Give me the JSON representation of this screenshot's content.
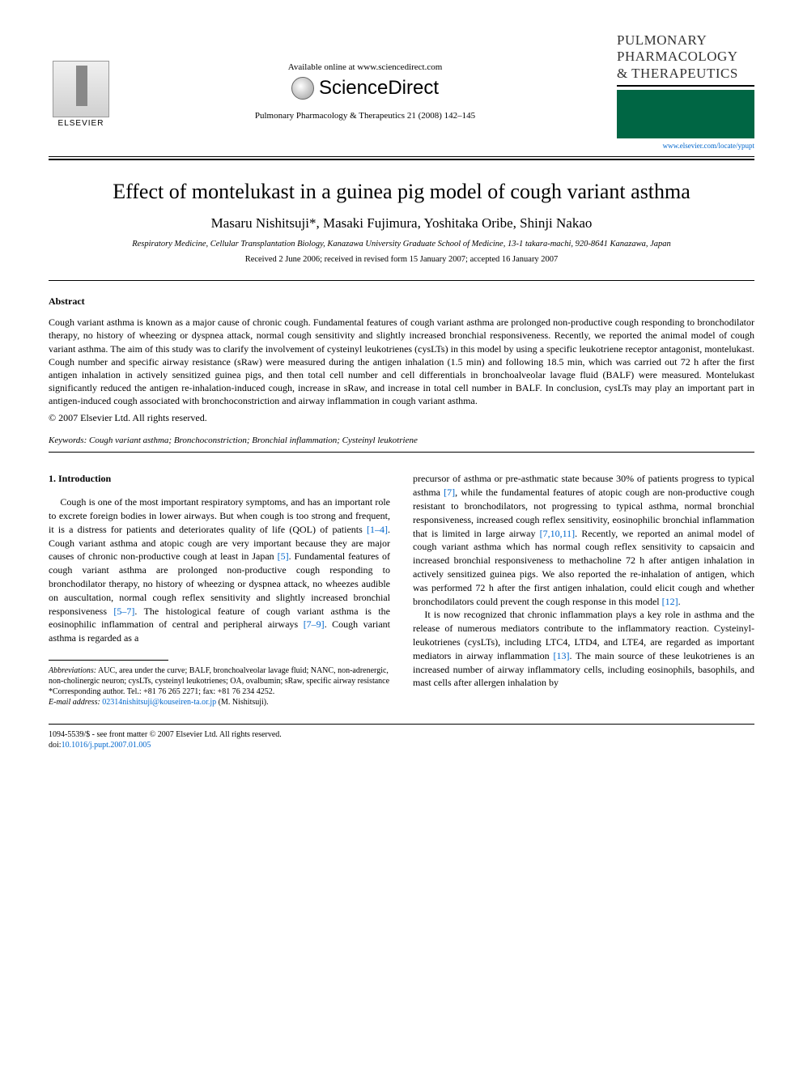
{
  "header": {
    "available_online": "Available online at www.sciencedirect.com",
    "sciencedirect": "ScienceDirect",
    "journal_ref": "Pulmonary Pharmacology & Therapeutics 21 (2008) 142–145",
    "elsevier_name": "ELSEVIER",
    "journal_logo_line1": "PULMONARY",
    "journal_logo_line2": "PHARMACOLOGY",
    "journal_logo_line3": "& THERAPEUTICS",
    "journal_url": "www.elsevier.com/locate/ypupt"
  },
  "article": {
    "title": "Effect of montelukast in a guinea pig model of cough variant asthma",
    "authors": "Masaru Nishitsuji*, Masaki Fujimura, Yoshitaka Oribe, Shinji Nakao",
    "affiliation": "Respiratory Medicine, Cellular Transplantation Biology, Kanazawa University Graduate School of Medicine, 13-1 takara-machi, 920-8641 Kanazawa, Japan",
    "dates": "Received 2 June 2006; received in revised form 15 January 2007; accepted 16 January 2007"
  },
  "abstract": {
    "heading": "Abstract",
    "body": "Cough variant asthma is known as a major cause of chronic cough. Fundamental features of cough variant asthma are prolonged non-productive cough responding to bronchodilator therapy, no history of wheezing or dyspnea attack, normal cough sensitivity and slightly increased bronchial responsiveness. Recently, we reported the animal model of cough variant asthma. The aim of this study was to clarify the involvement of cysteinyl leukotrienes (cysLTs) in this model by using a specific leukotriene receptor antagonist, montelukast. Cough number and specific airway resistance (sRaw) were measured during the antigen inhalation (1.5 min) and following 18.5 min, which was carried out 72 h after the first antigen inhalation in actively sensitized guinea pigs, and then total cell number and cell differentials in bronchoalveolar lavage fluid (BALF) were measured. Montelukast significantly reduced the antigen re-inhalation-induced cough, increase in sRaw, and increase in total cell number in BALF. In conclusion, cysLTs may play an important part in antigen-induced cough associated with bronchoconstriction and airway inflammation in cough variant asthma.",
    "copyright": "© 2007 Elsevier Ltd. All rights reserved.",
    "keywords_label": "Keywords:",
    "keywords": " Cough variant asthma; Bronchoconstriction; Bronchial inflammation; Cysteinyl leukotriene"
  },
  "body": {
    "section1_head": "1. Introduction",
    "col1_p1a": "Cough is one of the most important respiratory symptoms, and has an important role to excrete foreign bodies in lower airways. But when cough is too strong and frequent, it is a distress for patients and deteriorates quality of life (QOL) of patients ",
    "col1_ref1": "[1–4]",
    "col1_p1b": ". Cough variant asthma and atopic cough are very important because they are major causes of chronic non-productive cough at least in Japan ",
    "col1_ref2": "[5]",
    "col1_p1c": ". Fundamental features of cough variant asthma are prolonged non-productive cough responding to bronchodilator therapy, no history of wheezing or dyspnea attack, no wheezes audible on auscultation, normal cough reflex sensitivity and slightly increased bronchial responsiveness ",
    "col1_ref3": "[5–7]",
    "col1_p1d": ". The histological feature of cough variant asthma is the eosinophilic inflammation of central and peripheral airways ",
    "col1_ref4": "[7–9]",
    "col1_p1e": ". Cough variant asthma is regarded as a",
    "col2_p1a": "precursor of asthma or pre-asthmatic state because 30% of patients progress to typical asthma ",
    "col2_ref1": "[7]",
    "col2_p1b": ", while the fundamental features of atopic cough are non-productive cough resistant to bronchodilators, not progressing to typical asthma, normal bronchial responsiveness, increased cough reflex sensitivity, eosinophilic bronchial inflammation that is limited in large airway ",
    "col2_ref2": "[7,10,11]",
    "col2_p1c": ". Recently, we reported an animal model of cough variant asthma which has normal cough reflex sensitivity to capsaicin and increased bronchial responsiveness to methacholine 72 h after antigen inhalation in actively sensitized guinea pigs. We also reported the re-inhalation of antigen, which was performed 72 h after the first antigen inhalation, could elicit cough and whether bronchodilators could prevent the cough response in this model ",
    "col2_ref3": "[12]",
    "col2_p1d": ".",
    "col2_p2a": "It is now recognized that chronic inflammation plays a key role in asthma and the release of numerous mediators contribute to the inflammatory reaction. Cysteinyl-leukotrienes (cysLTs), including LTC4, LTD4, and LTE4, are regarded as important mediators in airway inflammation ",
    "col2_ref4": "[13]",
    "col2_p2b": ". The main source of these leukotrienes is an increased number of airway inflammatory cells, including eosinophils, basophils, and mast cells after allergen inhalation by"
  },
  "footnotes": {
    "abbrev_label": "Abbreviations:",
    "abbrev": " AUC, area under the curve; BALF, bronchoalveolar lavage fluid; NANC, non-adrenergic, non-cholinergic neuron; cysLTs, cysteinyl leukotrienes; OA, ovalbumin; sRaw, specific airway resistance",
    "corr": "*Corresponding author. Tel.: +81 76 265 2271; fax: +81 76 234 4252.",
    "email_label": "E-mail address:",
    "email": " 02314nishitsuji@kouseiren-ta.or.jp",
    "email_suffix": " (M. Nishitsuji)."
  },
  "footer": {
    "line1": "1094-5539/$ - see front matter © 2007 Elsevier Ltd. All rights reserved.",
    "doi_label": "doi:",
    "doi": "10.1016/j.pupt.2007.01.005"
  },
  "colors": {
    "link": "#0066cc",
    "text": "#000000",
    "journal_green": "#006644"
  }
}
